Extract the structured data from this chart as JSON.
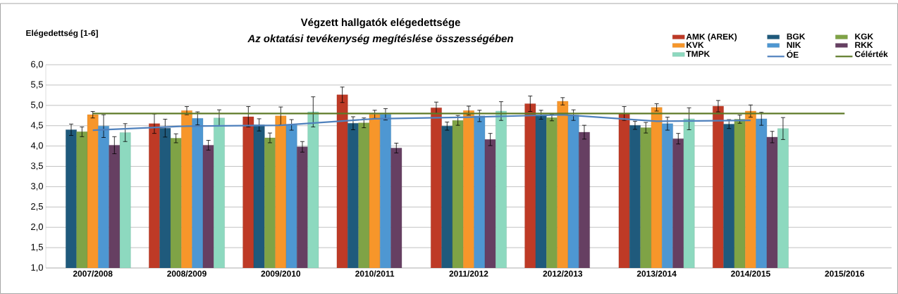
{
  "chart_data": {
    "type": "bar",
    "title": "Végzett hallgatók elégedettsége",
    "subtitle": "Az oktatási tevékenység megítéslése összességében",
    "ylabel": "Elégedettség [1-6]",
    "categories": [
      "2007/2008",
      "2008/2009",
      "2009/2010",
      "2010/2011",
      "2011/2012",
      "2012/2013",
      "2013/2014",
      "2014/2015",
      "2015/2016"
    ],
    "series": [
      {
        "name": "AMK (AREK)",
        "color": "#be3a26",
        "values": [
          null,
          4.55,
          4.72,
          5.26,
          4.94,
          5.04,
          4.8,
          4.98,
          null
        ],
        "errors": [
          null,
          0.24,
          0.25,
          0.19,
          0.14,
          0.19,
          0.17,
          0.14,
          null
        ]
      },
      {
        "name": "BGK",
        "color": "#1f5a7c",
        "values": [
          4.4,
          4.44,
          4.52,
          4.56,
          4.49,
          4.77,
          4.51,
          4.54,
          null
        ],
        "errors": [
          0.14,
          0.22,
          0.15,
          0.16,
          0.1,
          0.11,
          0.1,
          0.11,
          null
        ]
      },
      {
        "name": "KGK",
        "color": "#7fa346",
        "values": [
          4.35,
          4.19,
          4.2,
          4.57,
          4.63,
          4.7,
          4.45,
          4.66,
          null
        ],
        "errors": [
          0.12,
          0.11,
          0.12,
          0.12,
          0.12,
          0.08,
          0.13,
          0.1,
          null
        ]
      },
      {
        "name": "KVK",
        "color": "#f7962a",
        "values": [
          4.77,
          4.87,
          4.74,
          4.78,
          4.87,
          5.1,
          4.95,
          4.86,
          null
        ],
        "errors": [
          0.08,
          0.1,
          0.22,
          0.1,
          0.11,
          0.09,
          0.09,
          0.15,
          null
        ]
      },
      {
        "name": "NIK",
        "color": "#4e97d2",
        "values": [
          4.49,
          4.68,
          4.52,
          4.78,
          4.74,
          4.76,
          4.55,
          4.67,
          null
        ],
        "errors": [
          0.28,
          0.16,
          0.13,
          0.14,
          0.14,
          0.13,
          0.16,
          0.16,
          null
        ]
      },
      {
        "name": "RKK",
        "color": "#663f62",
        "values": [
          4.02,
          4.02,
          3.98,
          3.95,
          4.16,
          4.34,
          4.18,
          4.22,
          null
        ],
        "errors": [
          0.21,
          0.12,
          0.13,
          0.12,
          0.15,
          0.17,
          0.13,
          0.14,
          null
        ]
      },
      {
        "name": "TMPK",
        "color": "#8dd9bf",
        "values": [
          4.33,
          4.69,
          4.84,
          null,
          4.86,
          null,
          4.67,
          4.43,
          null
        ],
        "errors": [
          0.22,
          0.2,
          0.37,
          null,
          0.23,
          null,
          0.27,
          0.27,
          null
        ]
      },
      {
        "name": "ÓE",
        "type": "line",
        "color": "#4f81bd",
        "values": [
          4.39,
          4.49,
          4.51,
          4.67,
          4.71,
          4.77,
          4.61,
          4.63,
          null
        ]
      },
      {
        "name": "Célérték",
        "type": "line",
        "color": "#5e7a28",
        "values": [
          4.8,
          4.8,
          4.8,
          4.8,
          4.8,
          4.8,
          4.8,
          4.8,
          4.8
        ]
      }
    ],
    "ylim": [
      1,
      6
    ],
    "yticks": [
      {
        "value": 1,
        "label": "1,0"
      },
      {
        "value": 1.5,
        "label": "1,5"
      },
      {
        "value": 2,
        "label": "2,0"
      },
      {
        "value": 2.5,
        "label": "2,5"
      },
      {
        "value": 3,
        "label": "3,0"
      },
      {
        "value": 3.5,
        "label": "3,5"
      },
      {
        "value": 4,
        "label": "4,0"
      },
      {
        "value": 4.5,
        "label": "4,5"
      },
      {
        "value": 5,
        "label": "5,0"
      },
      {
        "value": 5.5,
        "label": "5,5"
      },
      {
        "value": 6,
        "label": "6,0"
      }
    ],
    "grid": "y",
    "legend": "top right"
  }
}
